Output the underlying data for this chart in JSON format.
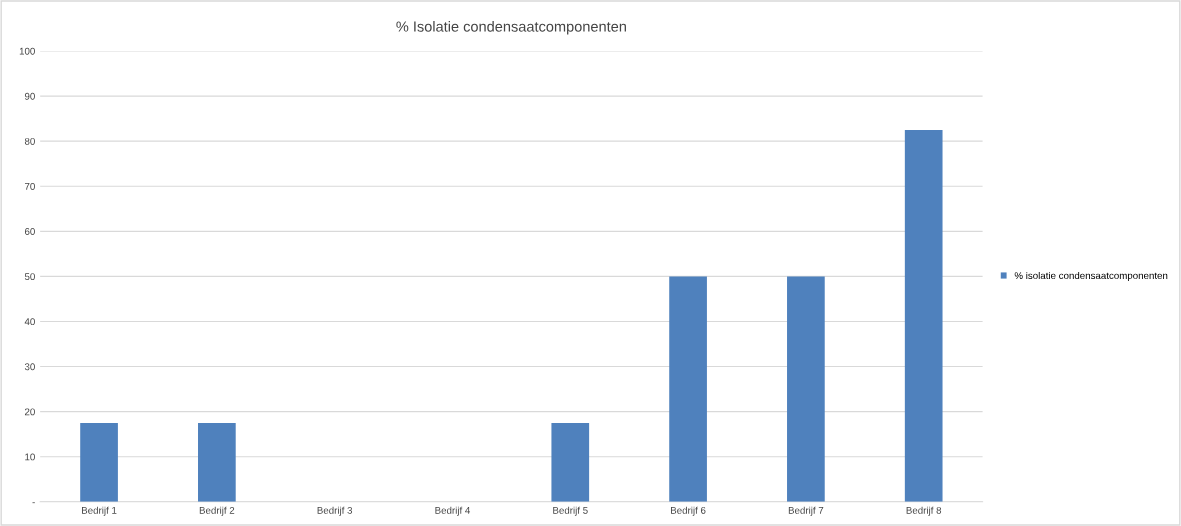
{
  "chart_data": {
    "type": "bar",
    "title": "% Isolatie condensaatcomponenten",
    "categories": [
      "Bedrijf 1",
      "Bedrijf 2",
      "Bedrijf 3",
      "Bedrijf 4",
      "Bedrijf 5",
      "Bedrijf 6",
      "Bedrijf 7",
      "Bedrijf 8"
    ],
    "series": [
      {
        "name": "% isolatie condensaatcomponenten",
        "color": "#4f81bd",
        "values": [
          17.5,
          17.5,
          0,
          0,
          17.5,
          50,
          50,
          82.5
        ]
      }
    ],
    "ylim": [
      0,
      100
    ],
    "yticks": [
      {
        "value": 0,
        "label": "-"
      },
      10,
      20,
      30,
      40,
      50,
      60,
      70,
      80,
      90,
      100
    ],
    "grid": "y",
    "legend": "right"
  }
}
